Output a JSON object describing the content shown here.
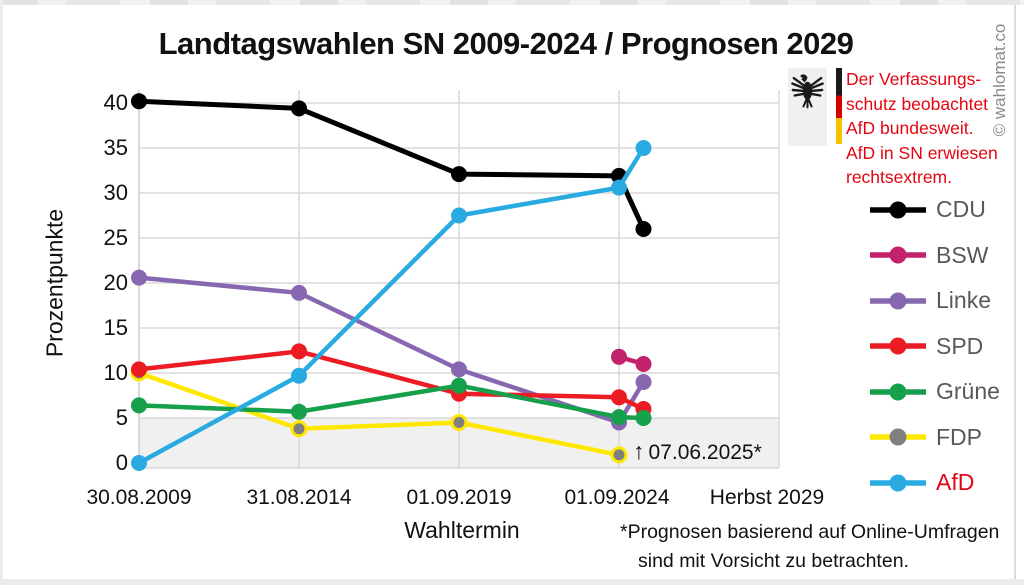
{
  "watermark": "© wahlomat.co",
  "warning": {
    "color": "#E30613",
    "lines": [
      "Der Verfassungs-",
      "schutz beobachtet",
      "AfD bundesweit.",
      "AfD in SN erwiesen",
      "rechtsextrem."
    ]
  },
  "chart_data": {
    "type": "line",
    "title": "Landtagswahlen SN 2009-2024 / Prognosen 2029",
    "xlabel": "Wahltermin",
    "ylabel": "Prozentpunkte",
    "ylim": [
      0,
      40
    ],
    "y_ticks": [
      0,
      5,
      10,
      15,
      20,
      25,
      30,
      35,
      40
    ],
    "grid": "on",
    "legend_position": "right",
    "x_categories": [
      "30.08.2009",
      "31.08.2014",
      "01.09.2019",
      "01.09.2024",
      "Herbst 2029"
    ],
    "threshold_band": {
      "from": 0,
      "to": 5
    },
    "prognosis_annotation": {
      "arrow": "↑",
      "label": "07.06.2025*"
    },
    "series": [
      {
        "name": "CDU",
        "color": "#000000",
        "label_color": "#595959",
        "values": [
          40.2,
          39.4,
          32.1,
          31.9
        ],
        "prognose": 26
      },
      {
        "name": "BSW",
        "color": "#C1226B",
        "label_color": "#595959",
        "values": [
          null,
          null,
          null,
          11.8
        ],
        "prognose": 11
      },
      {
        "name": "Linke",
        "color": "#8768B0",
        "label_color": "#595959",
        "values": [
          20.6,
          18.9,
          10.4,
          4.5
        ],
        "prognose": 9
      },
      {
        "name": "SPD",
        "color": "#EC1C24",
        "label_color": "#595959",
        "values": [
          10.4,
          12.4,
          7.7,
          7.3
        ],
        "prognose": 6
      },
      {
        "name": "Grüne",
        "color": "#17A04B",
        "label_color": "#595959",
        "values": [
          6.4,
          5.7,
          8.6,
          5.1
        ],
        "prognose": 5
      },
      {
        "name": "FDP",
        "color": "#FFE800",
        "marker_color": "#808080",
        "label_color": "#595959",
        "values": [
          10.0,
          3.8,
          4.5,
          0.9
        ],
        "prognose": null
      },
      {
        "name": "AfD",
        "color": "#29ABE2",
        "label_color": "#E30613",
        "values": [
          0,
          9.7,
          27.5,
          30.6
        ],
        "prognose": 35
      }
    ],
    "footnote_lines": [
      "*Prognosen basierend auf Online-Umfragen",
      "sind mit Vorsicht zu betrachten."
    ]
  }
}
